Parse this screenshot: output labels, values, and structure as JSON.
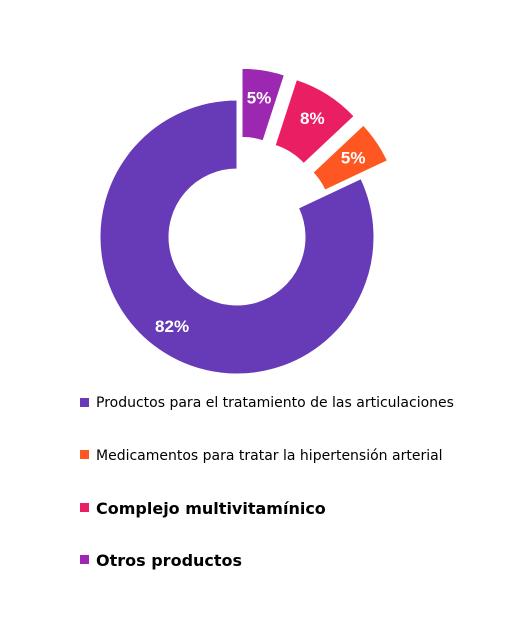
{
  "chart_data": {
    "type": "pie",
    "donut": true,
    "series": [
      {
        "name": "Productos para el tratamiento de las articulaciones",
        "value": 82,
        "label": "82%",
        "color": "#673ab7",
        "exploded": false
      },
      {
        "name": "Medicamentos para tratar la hipertensión arterial",
        "value": 5,
        "label": "5%",
        "color": "#ff5722",
        "exploded": true
      },
      {
        "name": "Complejo multivitamínico",
        "value": 8,
        "label": "8%",
        "color": "#e91e63",
        "exploded": true
      },
      {
        "name": "Otros productos",
        "value": 5,
        "label": "5%",
        "color": "#9c27b0",
        "exploded": true
      }
    ],
    "legend_position": "bottom"
  }
}
